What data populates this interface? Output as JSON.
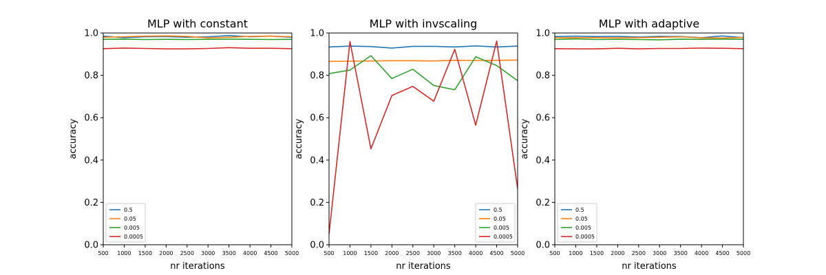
{
  "colors": {
    "0.5": "#1f77b4",
    "0.05": "#ff7f0e",
    "0.005": "#2ca02c",
    "0.0005": "#d62728"
  },
  "chart_data": [
    {
      "type": "line",
      "title": "MLP with constant",
      "xlabel": "nr iterations",
      "ylabel": "accuracy",
      "xlim": [
        500,
        5000
      ],
      "ylim": [
        0.0,
        1.0
      ],
      "xticks": [
        500,
        1000,
        1500,
        2000,
        2500,
        3000,
        3500,
        4000,
        4500,
        5000
      ],
      "yticks": [
        0.0,
        0.2,
        0.4,
        0.6,
        0.8,
        1.0
      ],
      "grid": false,
      "legend": "lower-left",
      "x": [
        500,
        1000,
        1500,
        2000,
        2500,
        3000,
        3500,
        4000,
        4500,
        5000
      ],
      "series": [
        {
          "name": "0.5",
          "values": [
            0.985,
            0.978,
            0.982,
            0.983,
            0.98,
            0.982,
            0.988,
            0.982,
            0.985,
            0.98
          ]
        },
        {
          "name": "0.05",
          "values": [
            0.98,
            0.982,
            0.985,
            0.986,
            0.984,
            0.977,
            0.98,
            0.984,
            0.985,
            0.982
          ]
        },
        {
          "name": "0.005",
          "values": [
            0.97,
            0.971,
            0.969,
            0.97,
            0.969,
            0.97,
            0.971,
            0.97,
            0.969,
            0.97
          ]
        },
        {
          "name": "0.0005",
          "values": [
            0.926,
            0.929,
            0.927,
            0.925,
            0.925,
            0.927,
            0.931,
            0.928,
            0.928,
            0.926
          ]
        }
      ]
    },
    {
      "type": "line",
      "title": "MLP with invscaling",
      "xlabel": "nr iterations",
      "ylabel": "accuracy",
      "xlim": [
        500,
        5000
      ],
      "ylim": [
        0.0,
        1.0
      ],
      "xticks": [
        500,
        1000,
        1500,
        2000,
        2500,
        3000,
        3500,
        4000,
        4500,
        5000
      ],
      "yticks": [
        0.0,
        0.2,
        0.4,
        0.6,
        0.8,
        1.0
      ],
      "grid": false,
      "legend": "lower-right",
      "x": [
        500,
        1000,
        1500,
        2000,
        2500,
        3000,
        3500,
        4000,
        4500,
        5000
      ],
      "series": [
        {
          "name": "0.5",
          "values": [
            0.934,
            0.938,
            0.936,
            0.929,
            0.937,
            0.937,
            0.934,
            0.939,
            0.934,
            0.938
          ]
        },
        {
          "name": "0.05",
          "values": [
            0.866,
            0.867,
            0.868,
            0.869,
            0.869,
            0.868,
            0.871,
            0.87,
            0.871,
            0.872
          ]
        },
        {
          "name": "0.005",
          "values": [
            0.808,
            0.825,
            0.893,
            0.785,
            0.829,
            0.752,
            0.732,
            0.888,
            0.846,
            0.775
          ]
        },
        {
          "name": "0.0005",
          "values": [
            0.05,
            0.96,
            0.453,
            0.705,
            0.748,
            0.678,
            0.923,
            0.565,
            0.962,
            0.265
          ]
        }
      ]
    },
    {
      "type": "line",
      "title": "MLP with adaptive",
      "xlabel": "nr iterations",
      "ylabel": "accuracy",
      "xlim": [
        500,
        5000
      ],
      "ylim": [
        0.0,
        1.0
      ],
      "xticks": [
        500,
        1000,
        1500,
        2000,
        2500,
        3000,
        3500,
        4000,
        4500,
        5000
      ],
      "yticks": [
        0.0,
        0.2,
        0.4,
        0.6,
        0.8,
        1.0
      ],
      "grid": false,
      "legend": "lower-left",
      "x": [
        500,
        1000,
        1500,
        2000,
        2500,
        3000,
        3500,
        4000,
        4500,
        5000
      ],
      "series": [
        {
          "name": "0.5",
          "values": [
            0.983,
            0.985,
            0.983,
            0.984,
            0.981,
            0.984,
            0.983,
            0.978,
            0.986,
            0.978
          ]
        },
        {
          "name": "0.05",
          "values": [
            0.977,
            0.978,
            0.978,
            0.977,
            0.978,
            0.98,
            0.982,
            0.977,
            0.976,
            0.979
          ]
        },
        {
          "name": "0.005",
          "values": [
            0.969,
            0.972,
            0.969,
            0.97,
            0.969,
            0.968,
            0.971,
            0.97,
            0.971,
            0.97
          ]
        },
        {
          "name": "0.0005",
          "values": [
            0.926,
            0.925,
            0.925,
            0.928,
            0.925,
            0.927,
            0.927,
            0.929,
            0.928,
            0.926
          ]
        }
      ]
    }
  ]
}
